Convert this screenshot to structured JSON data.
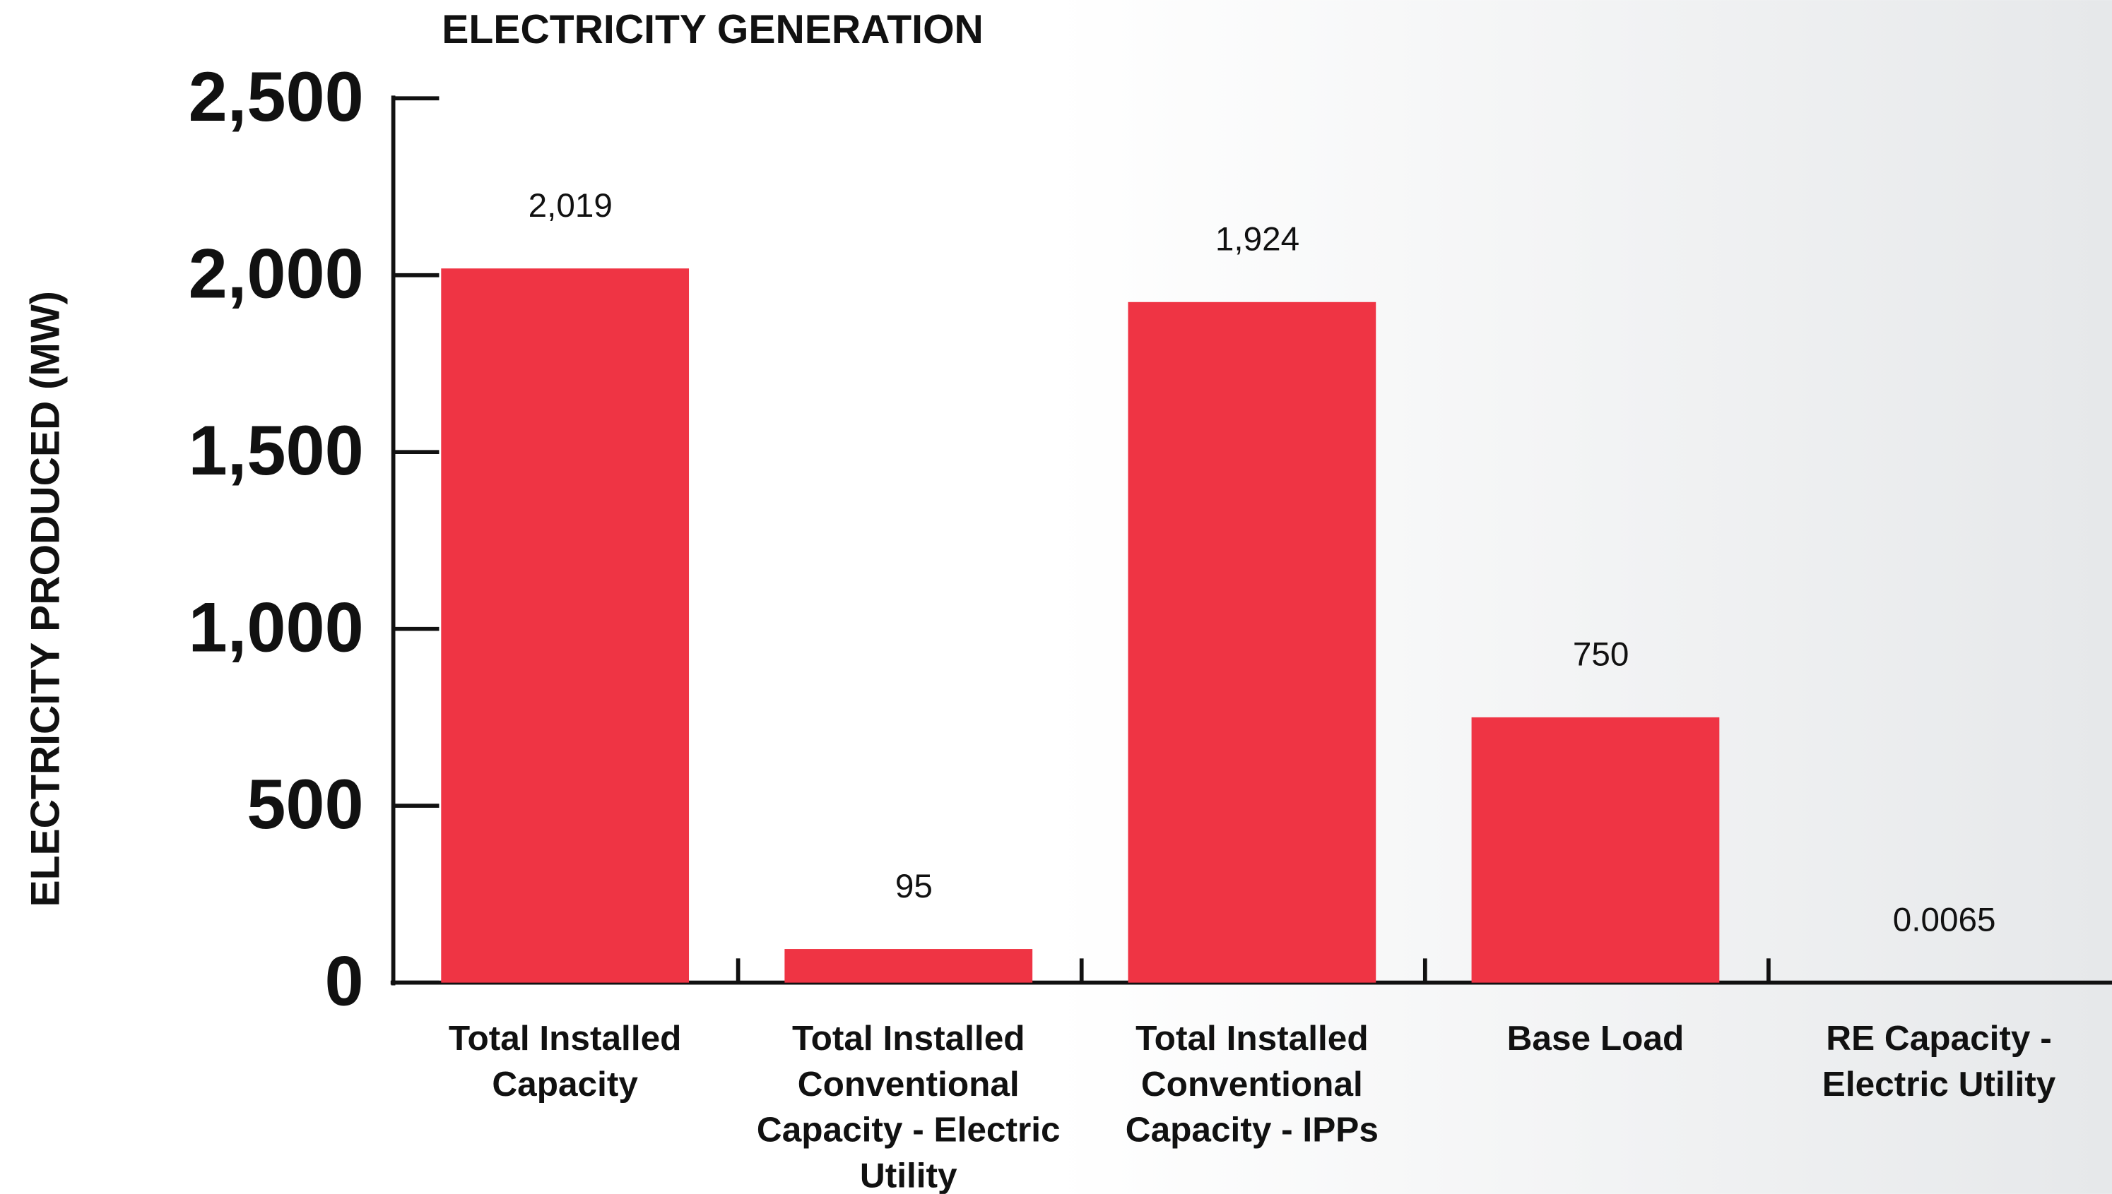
{
  "chart_data": {
    "type": "bar",
    "title": "ELECTRICITY GENERATION",
    "y_label": "ELECTRICITY PRODUCED (MW)",
    "categories": [
      "Total Installed Capacity",
      "Total Installed Conventional Capacity - Electric Utility",
      "Total Installed Conventional Capacity - IPPs",
      "Base Load",
      "RE Capacity - Electric Utility"
    ],
    "values": [
      2019,
      95,
      1924,
      750,
      0.0065
    ],
    "value_labels": [
      "2,019",
      "95",
      "1,924",
      "750",
      "0.0065"
    ],
    "color": "#ef3444",
    "ylim": [
      0,
      2500
    ],
    "yticks": [
      0,
      500,
      {
        "value": 1000,
        "label": "1,000"
      },
      {
        "value": 1500,
        "label": "1,500"
      },
      {
        "value": 2000,
        "label": "2,000"
      },
      {
        "value": 2500,
        "label": "2,500"
      }
    ],
    "grid": false
  }
}
